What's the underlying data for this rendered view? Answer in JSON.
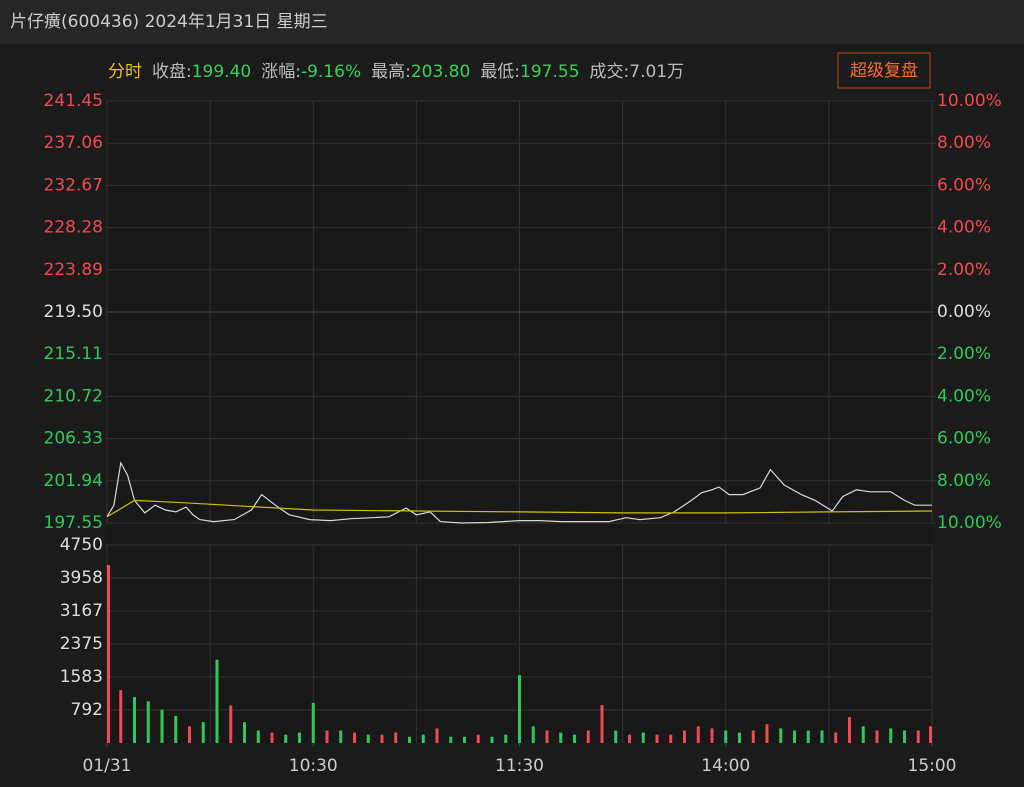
{
  "header": {
    "title": "片仔癀(600436) 2024年1月31日 星期三",
    "button": "超级复盘",
    "info": [
      {
        "text": "分时",
        "color": "#e8c21a"
      },
      {
        "text": "收盘:",
        "color": "#bbbbbb"
      },
      {
        "text": "199.40",
        "color": "#35d35a"
      },
      {
        "text": "涨幅:",
        "color": "#bbbbbb"
      },
      {
        "text": "-9.16%",
        "color": "#35d35a"
      },
      {
        "text": "最高:",
        "color": "#bbbbbb"
      },
      {
        "text": "203.80",
        "color": "#35d35a"
      },
      {
        "text": "最低:",
        "color": "#bbbbbb"
      },
      {
        "text": "197.55",
        "color": "#35d35a"
      },
      {
        "text": "成交:7.01万",
        "color": "#bbbbbb"
      }
    ]
  },
  "chart_data": [
    {
      "type": "line",
      "xlim": [
        0,
        240
      ],
      "x_grid": [
        0,
        30,
        60,
        90,
        120,
        150,
        180,
        210,
        240
      ],
      "ylim": [
        197.55,
        241.45
      ],
      "yticks": [
        241.45,
        237.06,
        232.67,
        228.28,
        223.89,
        {
          "value": 219.5,
          "label": "219.50"
        },
        215.11,
        210.72,
        206.33,
        201.94,
        197.55
      ],
      "y2lim": [
        -10,
        10
      ],
      "y2ticks": [
        {
          "value": 10,
          "label": "10.00%"
        },
        {
          "value": 8,
          "label": "8.00%"
        },
        {
          "value": 6,
          "label": "6.00%"
        },
        {
          "value": 4,
          "label": "4.00%"
        },
        {
          "value": 2,
          "label": "2.00%"
        },
        {
          "value": 0,
          "label": "0.00%"
        },
        {
          "value": -2,
          "label": "2.00%"
        },
        {
          "value": -4,
          "label": "4.00%"
        },
        {
          "value": -6,
          "label": "6.00%"
        },
        {
          "value": -8,
          "label": "8.00%"
        },
        {
          "value": -10,
          "label": "10.00%"
        }
      ],
      "series": [
        {
          "color": "#d8d8d8",
          "x": [
            0,
            2,
            4,
            6,
            8,
            11,
            14,
            17,
            20,
            23,
            25,
            27,
            31,
            37,
            42,
            45,
            49,
            53,
            59,
            65,
            71,
            77,
            82,
            87,
            90,
            94,
            97,
            103,
            111,
            120,
            126,
            132,
            141,
            146,
            151,
            155,
            161,
            165,
            170,
            173,
            176,
            178,
            181,
            185,
            190,
            193,
            197,
            202,
            206,
            211,
            214,
            218,
            222,
            228,
            232,
            235,
            240
          ],
          "values": [
            198.2,
            199.4,
            203.8,
            202.5,
            199.9,
            198.6,
            199.4,
            198.9,
            198.7,
            199.2,
            198.4,
            197.9,
            197.7,
            197.9,
            198.9,
            200.5,
            199.4,
            198.4,
            197.9,
            197.8,
            198.0,
            198.1,
            198.2,
            199.1,
            198.4,
            198.7,
            197.7,
            197.55,
            197.6,
            197.8,
            197.8,
            197.7,
            197.7,
            197.7,
            198.1,
            197.9,
            198.1,
            198.7,
            199.9,
            200.7,
            201.0,
            201.3,
            200.5,
            200.5,
            201.2,
            203.1,
            201.5,
            200.5,
            199.9,
            198.8,
            200.3,
            201.0,
            200.8,
            200.8,
            199.9,
            199.4,
            199.4
          ]
        },
        {
          "color": "#d4c000",
          "x": [
            0,
            8,
            20,
            40,
            60,
            90,
            120,
            150,
            180,
            210,
            240
          ],
          "values": [
            198.2,
            199.9,
            199.7,
            199.3,
            198.9,
            198.8,
            198.7,
            198.6,
            198.6,
            198.7,
            198.8
          ]
        }
      ]
    },
    {
      "type": "bar",
      "xlim": [
        0,
        240
      ],
      "x_grid": [
        0,
        30,
        60,
        90,
        120,
        150,
        180,
        210,
        240
      ],
      "ylim": [
        0,
        4750
      ],
      "yticks": [
        4750,
        3958,
        3167,
        2375,
        1583,
        792
      ],
      "xticks": [
        {
          "value": 0,
          "label": "01/31"
        },
        {
          "value": 60,
          "label": "10:30"
        },
        {
          "value": 120,
          "label": "11:30"
        },
        {
          "value": 180,
          "label": "14:00"
        },
        {
          "value": 240,
          "label": "15:00"
        }
      ],
      "palette": [
        "#f0494e",
        "#2ec95a"
      ],
      "x": [
        0,
        4,
        8,
        12,
        16,
        20,
        24,
        28,
        32,
        36,
        40,
        44,
        48,
        52,
        56,
        60,
        64,
        68,
        72,
        76,
        80,
        84,
        88,
        92,
        96,
        100,
        104,
        108,
        112,
        116,
        120,
        124,
        128,
        132,
        136,
        140,
        144,
        148,
        152,
        156,
        160,
        164,
        168,
        172,
        176,
        180,
        184,
        188,
        192,
        196,
        200,
        204,
        208,
        212,
        216,
        220,
        224,
        228,
        232,
        236,
        240
      ],
      "values": [
        4270,
        1270,
        1100,
        1000,
        800,
        650,
        400,
        500,
        2000,
        900,
        500,
        300,
        250,
        200,
        250,
        960,
        300,
        300,
        250,
        200,
        200,
        250,
        150,
        200,
        350,
        150,
        150,
        200,
        150,
        200,
        1630,
        400,
        300,
        250,
        200,
        300,
        910,
        300,
        200,
        250,
        200,
        200,
        300,
        400,
        350,
        300,
        250,
        300,
        450,
        350,
        300,
        300,
        300,
        250,
        620,
        400,
        300,
        350,
        300,
        300,
        400
      ],
      "color_index": [
        0,
        0,
        1,
        1,
        1,
        1,
        0,
        1,
        1,
        0,
        1,
        1,
        0,
        1,
        1,
        1,
        0,
        1,
        0,
        1,
        0,
        0,
        1,
        1,
        0,
        1,
        1,
        0,
        1,
        1,
        1,
        1,
        0,
        1,
        1,
        0,
        0,
        1,
        0,
        1,
        0,
        0,
        0,
        0,
        0,
        1,
        1,
        0,
        0,
        1,
        1,
        1,
        1,
        0,
        0,
        1,
        0,
        1,
        1,
        0,
        0
      ]
    }
  ]
}
